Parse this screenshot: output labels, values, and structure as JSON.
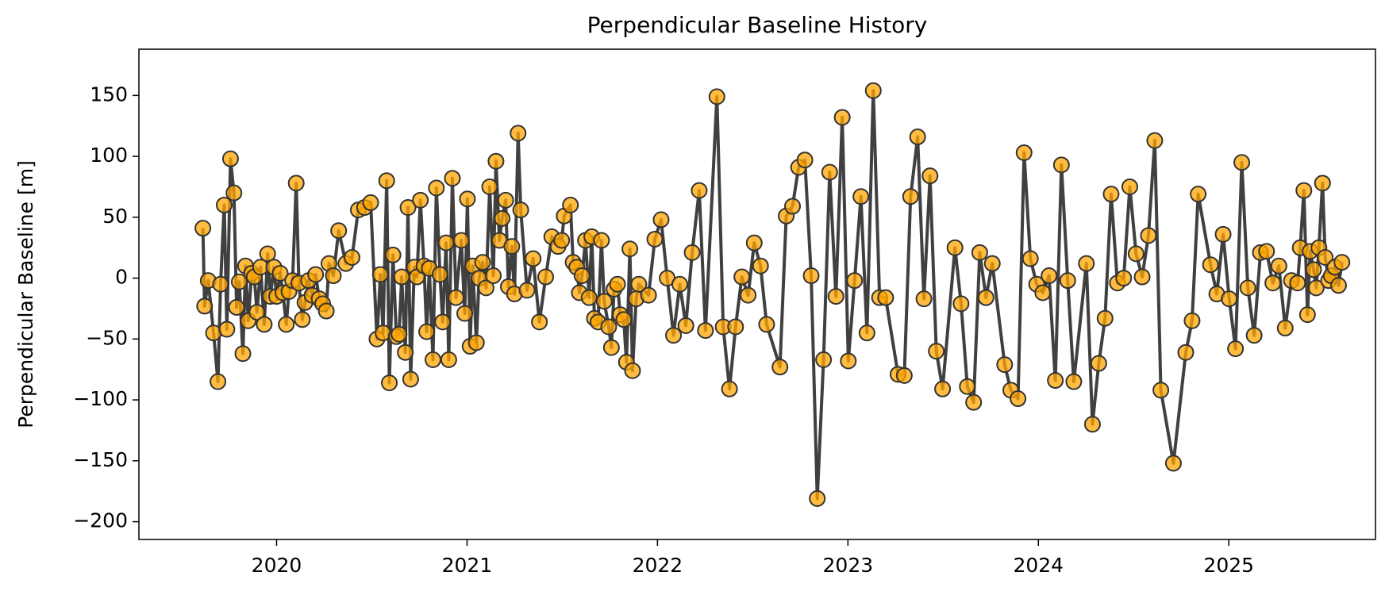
{
  "chart_data": {
    "type": "line",
    "title": "Perpendicular Baseline History",
    "y_label": "Perpendicular Baseline [m]",
    "line_color": "#404040",
    "marker_color": "#ffa500",
    "marker_edge_color": "#333333",
    "grid": false,
    "xlim": [
      2019.277,
      2025.77
    ],
    "xticks": [
      2020,
      2021,
      2022,
      2023,
      2024,
      2025
    ],
    "ylim": [
      -214.6,
      188
    ],
    "yticks": [
      {
        "value": -200,
        "label": "−200"
      },
      {
        "value": -150,
        "label": "−150"
      },
      {
        "value": -100,
        "label": "−100"
      },
      {
        "value": -50,
        "label": "−50"
      },
      0,
      50,
      100,
      150
    ],
    "x": [
      2019.613,
      2019.622,
      2019.641,
      2019.669,
      2019.692,
      2019.706,
      2019.725,
      2019.739,
      2019.758,
      2019.776,
      2019.79,
      2019.804,
      2019.823,
      2019.837,
      2019.851,
      2019.869,
      2019.883,
      2019.897,
      2019.916,
      2019.935,
      2019.953,
      2019.967,
      2019.986,
      2020.0,
      2020.019,
      2020.033,
      2020.051,
      2020.065,
      2020.084,
      2020.103,
      2020.117,
      2020.135,
      2020.149,
      2020.168,
      2020.186,
      2020.205,
      2020.224,
      2020.242,
      2020.261,
      2020.275,
      2020.298,
      2020.326,
      2020.364,
      2020.396,
      2020.429,
      2020.462,
      2020.494,
      2020.527,
      2020.545,
      2020.559,
      2020.578,
      2020.592,
      2020.611,
      2020.629,
      2020.643,
      2020.657,
      2020.676,
      2020.69,
      2020.704,
      2020.723,
      2020.737,
      2020.755,
      2020.774,
      2020.788,
      2020.802,
      2020.821,
      2020.839,
      2020.858,
      2020.872,
      2020.89,
      2020.904,
      2020.923,
      2020.942,
      2020.97,
      2020.988,
      2021.002,
      2021.016,
      2021.03,
      2021.049,
      2021.063,
      2021.082,
      2021.1,
      2021.119,
      2021.138,
      2021.152,
      2021.17,
      2021.184,
      2021.203,
      2021.217,
      2021.235,
      2021.249,
      2021.268,
      2021.282,
      2021.315,
      2021.347,
      2021.38,
      2021.413,
      2021.445,
      2021.478,
      2021.497,
      2021.51,
      2021.543,
      2021.557,
      2021.576,
      2021.59,
      2021.604,
      2021.622,
      2021.641,
      2021.655,
      2021.669,
      2021.688,
      2021.706,
      2021.72,
      2021.744,
      2021.758,
      2021.772,
      2021.79,
      2021.804,
      2021.823,
      2021.837,
      2021.855,
      2021.869,
      2021.888,
      2021.902,
      2021.953,
      2021.986,
      2022.019,
      2022.051,
      2022.084,
      2022.117,
      2022.149,
      2022.182,
      2022.219,
      2022.252,
      2022.312,
      2022.345,
      2022.378,
      2022.41,
      2022.443,
      2022.476,
      2022.508,
      2022.541,
      2022.573,
      2022.643,
      2022.676,
      2022.709,
      2022.741,
      2022.774,
      2022.807,
      2022.839,
      2022.872,
      2022.904,
      2022.937,
      2022.97,
      2023.002,
      2023.035,
      2023.068,
      2023.1,
      2023.133,
      2023.166,
      2023.198,
      2023.263,
      2023.296,
      2023.329,
      2023.366,
      2023.399,
      2023.431,
      2023.464,
      2023.497,
      2023.562,
      2023.594,
      2023.627,
      2023.66,
      2023.692,
      2023.725,
      2023.758,
      2023.823,
      2023.855,
      2023.893,
      2023.925,
      2023.958,
      2023.991,
      2024.023,
      2024.056,
      2024.089,
      2024.121,
      2024.154,
      2024.186,
      2024.252,
      2024.284,
      2024.317,
      2024.35,
      2024.382,
      2024.415,
      2024.448,
      2024.48,
      2024.513,
      2024.545,
      2024.578,
      2024.611,
      2024.643,
      2024.709,
      2024.774,
      2024.807,
      2024.839,
      2024.904,
      2024.937,
      2024.97,
      2025.002,
      2025.035,
      2025.068,
      2025.1,
      2025.133,
      2025.166,
      2025.198,
      2025.231,
      2025.263,
      2025.296,
      2025.329,
      2025.361,
      2025.375,
      2025.394,
      2025.413,
      2025.427,
      2025.445,
      2025.459,
      2025.473,
      2025.492,
      2025.506,
      2025.524,
      2025.538,
      2025.557,
      2025.576,
      2025.594
    ],
    "values": [
      41,
      -23,
      -2,
      -45,
      -85,
      -5,
      60,
      -42,
      98,
      70,
      -24,
      -3,
      -62,
      10,
      -35,
      4,
      1,
      -28,
      9,
      -38,
      20,
      -15,
      9,
      -15,
      4,
      -12,
      -38,
      -11,
      -2,
      78,
      -4,
      -34,
      -20,
      -2,
      -14,
      3,
      -17,
      -21,
      -27,
      12,
      2,
      39,
      12,
      17,
      56,
      58,
      62,
      -50,
      3,
      -45,
      80,
      -86,
      19,
      -48,
      -46,
      1,
      -61,
      58,
      -83,
      9,
      1,
      64,
      10,
      -44,
      8,
      -67,
      74,
      3,
      -36,
      29,
      -67,
      82,
      -16,
      31,
      -29,
      65,
      -56,
      10,
      -53,
      0,
      13,
      -8,
      75,
      2,
      96,
      31,
      49,
      64,
      -7,
      26,
      -13,
      119,
      56,
      -10,
      16,
      -36,
      1,
      34,
      26,
      31,
      51,
      60,
      13,
      9,
      -12,
      2,
      31,
      -16,
      34,
      -33,
      -36,
      31,
      -19,
      -40,
      -57,
      -9,
      -5,
      -30,
      -34,
      -69,
      24,
      -76,
      -17,
      -5,
      -14,
      32,
      48,
      0,
      -47,
      -5,
      -39,
      21,
      72,
      -43,
      149,
      -40,
      -91,
      -40,
      1,
      -14,
      29,
      10,
      -38,
      -73,
      51,
      59,
      91,
      97,
      2,
      -181,
      -67,
      87,
      -15,
      132,
      -68,
      -2,
      67,
      -45,
      154,
      -16,
      -16,
      -79,
      -80,
      67,
      116,
      -17,
      84,
      -60,
      -91,
      25,
      -21,
      -89,
      -102,
      21,
      -16,
      12,
      -71,
      -92,
      -99,
      103,
      16,
      -5,
      -12,
      2,
      -84,
      93,
      -2,
      -85,
      12,
      -120,
      -70,
      -33,
      69,
      -4,
      0,
      75,
      20,
      1,
      35,
      113,
      -92,
      -152,
      -61,
      -35,
      69,
      11,
      -13,
      36,
      -17,
      -58,
      95,
      -8,
      -47,
      21,
      22,
      -4,
      10,
      -41,
      -2,
      -4,
      25,
      72,
      -30,
      22,
      7,
      -8,
      25,
      78,
      17,
      -2,
      2,
      9,
      -6,
      13
    ]
  }
}
